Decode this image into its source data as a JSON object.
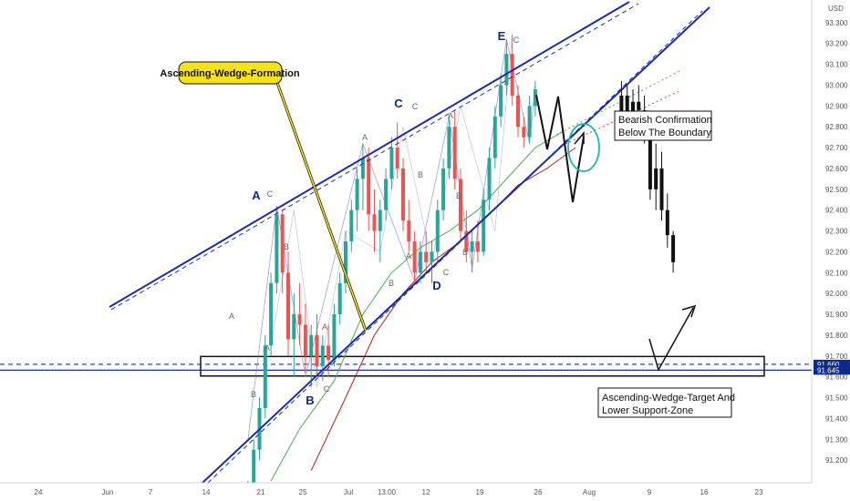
{
  "colors": {
    "background": "#ffffff",
    "axis_text": "#555555",
    "up_candle": "#26a69a",
    "down_candle": "#ef5350",
    "wedge_line": "#1a2bb0",
    "wave_label": "#0d2a8a",
    "ma_fast": "#4caf50",
    "ma_slow": "#b71c1c",
    "callout_fill": "#f6e21a",
    "price_tag": "#0d2a8a",
    "circle": "#1fb5b0"
  },
  "header": {
    "currency": "USD"
  },
  "callouts": {
    "formation": "Ascending-Wedge-Formation",
    "confirmation_line1": "Bearish Confirmation",
    "confirmation_line2": "Below The Boundary",
    "target_line1": "Ascending-Wedge-Target And",
    "target_line2": "Lower Support-Zone"
  },
  "price_tags": [
    "91.660",
    "91.645"
  ],
  "wave_labels": {
    "major": [
      {
        "label": "A",
        "date_index": 20,
        "price": 92.44
      },
      {
        "label": "B",
        "date_index": 33,
        "price": 91.46
      },
      {
        "label": "C",
        "date_index": 46,
        "price": 92.92
      },
      {
        "label": "D",
        "date_index": 59,
        "price": 92.05
      },
      {
        "label": "E",
        "date_index": 72,
        "price": 93.31
      }
    ],
    "minor": [
      {
        "label": "A",
        "date_index": 17,
        "price": 91.85
      },
      {
        "label": "C",
        "date_index": 21,
        "price": 92.44
      },
      {
        "label": "B",
        "date_index": 23,
        "price": 92.3
      },
      {
        "label": "A",
        "date_index": 21,
        "price": 91.72
      },
      {
        "label": "B",
        "date_index": 20,
        "price": 91.55
      },
      {
        "label": "A",
        "date_index": 31,
        "price": 91.82
      },
      {
        "label": "C",
        "date_index": 35,
        "price": 91.57
      },
      {
        "label": "A",
        "date_index": 39,
        "price": 92.78
      },
      {
        "label": "B",
        "date_index": 42,
        "price": 92.13
      },
      {
        "label": "C",
        "date_index": 49,
        "price": 92.91
      },
      {
        "label": "B",
        "date_index": 51,
        "price": 92.67
      },
      {
        "label": "A",
        "date_index": 54,
        "price": 92.3
      },
      {
        "label": "B",
        "date_index": 56,
        "price": 92.34
      },
      {
        "label": "C",
        "date_index": 60,
        "price": 92.18
      },
      {
        "label": "B",
        "date_index": 61,
        "price": 92.25
      },
      {
        "label": "A",
        "date_index": 64,
        "price": 92.86
      },
      {
        "label": "C",
        "date_index": 74,
        "price": 93.31
      }
    ]
  },
  "chart_data": {
    "type": "candlestick",
    "instrument_axis": "USD",
    "x_ticks": [
      "24",
      "Jun",
      "7",
      "14",
      "21",
      "25",
      "Jul",
      "13:00",
      "12",
      "19",
      "26",
      "Aug",
      "9",
      "16",
      "23"
    ],
    "y_ticks": [
      "91.200",
      "91.300",
      "91.400",
      "91.500",
      "91.600",
      "91.700",
      "91.800",
      "91.900",
      "92.000",
      "92.100",
      "92.200",
      "92.300",
      "92.400",
      "92.500",
      "92.600",
      "92.700",
      "92.800",
      "92.900",
      "93.000",
      "93.100",
      "93.200",
      "93.300"
    ],
    "ylim": [
      91.1,
      93.4
    ],
    "date_index_range": [
      0,
      150
    ],
    "candles": [
      [
        13,
        91.0,
        91.1,
        90.95,
        91.05
      ],
      [
        14,
        91.05,
        91.3,
        91.0,
        91.25
      ],
      [
        15,
        91.25,
        91.5,
        91.2,
        91.45
      ],
      [
        16,
        91.45,
        91.8,
        91.4,
        91.75
      ],
      [
        17,
        91.75,
        92.1,
        91.7,
        92.05
      ],
      [
        18,
        92.05,
        92.42,
        92.0,
        92.38
      ],
      [
        19,
        92.38,
        92.4,
        92.0,
        92.1
      ],
      [
        20,
        92.1,
        92.2,
        91.7,
        91.78
      ],
      [
        21,
        91.78,
        92.0,
        91.6,
        91.9
      ],
      [
        22,
        91.9,
        92.05,
        91.75,
        91.85
      ],
      [
        23,
        91.85,
        91.95,
        91.62,
        91.7
      ],
      [
        24,
        91.7,
        91.85,
        91.55,
        91.8
      ],
      [
        25,
        91.8,
        91.9,
        91.6,
        91.65
      ],
      [
        26,
        91.65,
        91.8,
        91.58,
        91.75
      ],
      [
        27,
        91.75,
        91.85,
        91.6,
        91.68
      ],
      [
        28,
        91.68,
        91.95,
        91.65,
        91.9
      ],
      [
        29,
        91.9,
        92.1,
        91.85,
        92.05
      ],
      [
        30,
        92.05,
        92.3,
        92.0,
        92.25
      ],
      [
        31,
        92.25,
        92.45,
        92.2,
        92.4
      ],
      [
        32,
        92.4,
        92.6,
        92.3,
        92.55
      ],
      [
        33,
        92.55,
        92.72,
        92.4,
        92.65
      ],
      [
        34,
        92.65,
        92.7,
        92.3,
        92.38
      ],
      [
        35,
        92.38,
        92.5,
        92.2,
        92.3
      ],
      [
        36,
        92.3,
        92.45,
        92.15,
        92.4
      ],
      [
        37,
        92.4,
        92.6,
        92.35,
        92.55
      ],
      [
        38,
        92.55,
        92.75,
        92.5,
        92.7
      ],
      [
        39,
        92.7,
        92.82,
        92.55,
        92.6
      ],
      [
        40,
        92.6,
        92.65,
        92.3,
        92.35
      ],
      [
        41,
        92.35,
        92.45,
        92.2,
        92.25
      ],
      [
        42,
        92.25,
        92.3,
        92.05,
        92.1
      ],
      [
        43,
        92.1,
        92.25,
        92.05,
        92.2
      ],
      [
        44,
        92.2,
        92.3,
        92.1,
        92.15
      ],
      [
        45,
        92.15,
        92.25,
        92.05,
        92.2
      ],
      [
        46,
        92.2,
        92.45,
        92.15,
        92.4
      ],
      [
        47,
        92.4,
        92.65,
        92.35,
        92.6
      ],
      [
        48,
        92.6,
        92.85,
        92.55,
        92.8
      ],
      [
        49,
        92.8,
        92.88,
        92.5,
        92.55
      ],
      [
        50,
        92.55,
        92.6,
        92.25,
        92.3
      ],
      [
        51,
        92.3,
        92.4,
        92.15,
        92.2
      ],
      [
        52,
        92.2,
        92.3,
        92.1,
        92.25
      ],
      [
        53,
        92.25,
        92.35,
        92.15,
        92.2
      ],
      [
        54,
        92.2,
        92.5,
        92.18,
        92.45
      ],
      [
        55,
        92.45,
        92.7,
        92.4,
        92.65
      ],
      [
        56,
        92.65,
        92.9,
        92.6,
        92.85
      ],
      [
        57,
        92.85,
        93.05,
        92.8,
        93.0
      ],
      [
        58,
        93.0,
        93.22,
        92.95,
        93.15
      ],
      [
        59,
        93.15,
        93.24,
        92.9,
        92.95
      ],
      [
        60,
        92.95,
        93.0,
        92.75,
        92.8
      ],
      [
        61,
        92.8,
        92.85,
        92.7,
        92.75
      ],
      [
        62,
        92.75,
        92.95,
        92.72,
        92.9
      ],
      [
        63,
        92.9,
        93.02,
        92.85,
        92.98
      ]
    ],
    "projection_candles": [
      [
        78,
        92.85,
        93.02,
        92.78,
        92.95
      ],
      [
        79,
        92.95,
        93.0,
        92.8,
        92.86
      ],
      [
        80,
        92.86,
        92.98,
        92.78,
        92.92
      ],
      [
        81,
        92.92,
        93.0,
        92.82,
        92.88
      ],
      [
        82,
        92.88,
        92.95,
        92.72,
        92.76
      ],
      [
        83,
        92.76,
        92.8,
        92.45,
        92.5
      ],
      [
        84,
        92.5,
        92.72,
        92.4,
        92.6
      ],
      [
        85,
        92.6,
        92.68,
        92.35,
        92.4
      ],
      [
        86,
        92.4,
        92.48,
        92.22,
        92.28
      ],
      [
        87,
        92.28,
        92.3,
        92.1,
        92.15
      ]
    ],
    "wedge_upper": {
      "points": [
        [
          8,
          91.98
        ],
        [
          76,
          93.36
        ],
        [
          150,
          94.9
        ]
      ]
    },
    "wedge_lower": {
      "points": [
        [
          13,
          91.2
        ],
        [
          64,
          92.65
        ],
        [
          150,
          94.8
        ]
      ]
    },
    "ma_fast": [
      [
        17,
        91.1
      ],
      [
        22,
        91.35
      ],
      [
        28,
        91.58
      ],
      [
        33,
        91.9
      ],
      [
        38,
        92.1
      ],
      [
        43,
        92.22
      ],
      [
        48,
        92.3
      ],
      [
        53,
        92.4
      ],
      [
        58,
        92.55
      ],
      [
        63,
        92.7
      ],
      [
        68,
        92.78
      ]
    ],
    "ma_slow": [
      [
        24,
        91.15
      ],
      [
        30,
        91.5
      ],
      [
        35,
        91.8
      ],
      [
        40,
        92.0
      ],
      [
        45,
        92.15
      ],
      [
        50,
        92.25
      ],
      [
        55,
        92.38
      ],
      [
        60,
        92.52
      ],
      [
        65,
        92.6
      ],
      [
        70,
        92.7
      ]
    ],
    "projection_path": [
      [
        67,
        92.99
      ],
      [
        70,
        92.85
      ],
      [
        72,
        92.75
      ],
      [
        74,
        92.99
      ],
      [
        77,
        92.55
      ],
      [
        80,
        92.86
      ]
    ],
    "target_path": [
      [
        104,
        91.7
      ],
      [
        107,
        91.62
      ],
      [
        113,
        91.96
      ]
    ],
    "support_zone": {
      "top": 91.68,
      "bottom": 91.63,
      "from_index": 0,
      "to_index": 122
    },
    "price_levels": [
      91.66,
      91.645
    ]
  }
}
